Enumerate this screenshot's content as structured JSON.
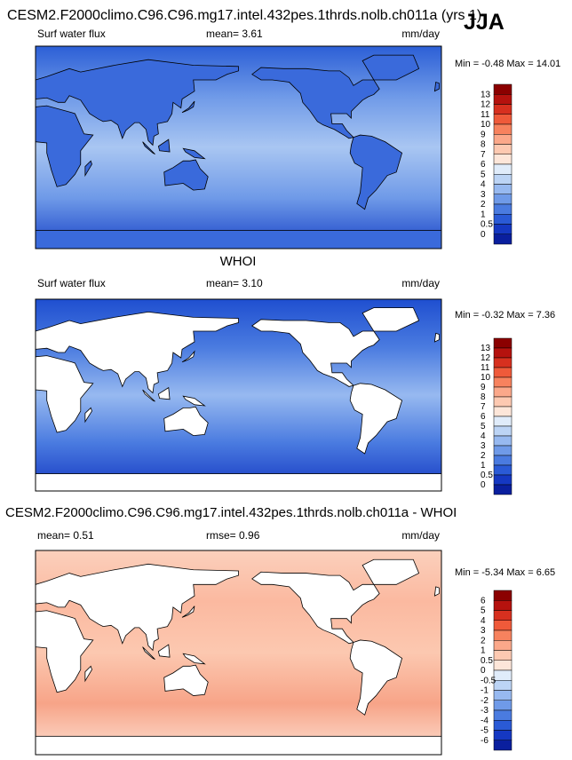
{
  "season": "JJA",
  "panels": [
    {
      "title": "CESM2.F2000climo.C96.C96.mg17.intel.432pes.1thrds.nolb.ch011a (yrs 1)",
      "left": "Surf water flux",
      "center": "mean=  3.61",
      "units": "mm/day",
      "minmax": "Min =  -0.48 Max =  14.01",
      "colorbar": {
        "labels": [
          "13",
          "12",
          "11",
          "10",
          "9",
          "8",
          "7",
          "6",
          "5",
          "4",
          "3",
          "2",
          "1",
          "0.5",
          "0"
        ],
        "colors": [
          "#8b0000",
          "#b5120e",
          "#d7301f",
          "#ef5a3a",
          "#f7825e",
          "#fba88a",
          "#fdc9b1",
          "#fde6d9",
          "#e0ecfa",
          "#bcd4f5",
          "#97b9f0",
          "#6f9ae8",
          "#4a7be0",
          "#2a5ad6",
          "#1538c2",
          "#0a1f9e"
        ]
      }
    },
    {
      "title": "WHOI",
      "left": "Surf water flux",
      "center": "mean=  3.10",
      "units": "mm/day",
      "minmax": "Min =  -0.32 Max =  7.36",
      "colorbar": {
        "labels": [
          "13",
          "12",
          "11",
          "10",
          "9",
          "8",
          "7",
          "6",
          "5",
          "4",
          "3",
          "2",
          "1",
          "0.5",
          "0"
        ],
        "colors": [
          "#8b0000",
          "#b5120e",
          "#d7301f",
          "#ef5a3a",
          "#f7825e",
          "#fba88a",
          "#fdc9b1",
          "#fde6d9",
          "#e0ecfa",
          "#bcd4f5",
          "#97b9f0",
          "#6f9ae8",
          "#4a7be0",
          "#2a5ad6",
          "#1538c2",
          "#0a1f9e"
        ]
      }
    },
    {
      "title": "CESM2.F2000climo.C96.C96.mg17.intel.432pes.1thrds.nolb.ch011a - WHOI",
      "left": "mean=  0.51",
      "center": "rmse=  0.96",
      "units": "mm/day",
      "minmax": "Min =  -5.34 Max =  6.65",
      "colorbar": {
        "labels": [
          "6",
          "5",
          "4",
          "3",
          "2",
          "1",
          "0.5",
          "0",
          "-0.5",
          "-1",
          "-2",
          "-3",
          "-4",
          "-5",
          "-6"
        ],
        "colors": [
          "#8b0000",
          "#b5120e",
          "#d7301f",
          "#ef5a3a",
          "#f7825e",
          "#fba88a",
          "#fdc9b1",
          "#fde6d9",
          "#e0ecfa",
          "#bcd4f5",
          "#97b9f0",
          "#6f9ae8",
          "#4a7be0",
          "#2a5ad6",
          "#1538c2",
          "#0a1f9e"
        ]
      }
    }
  ]
}
